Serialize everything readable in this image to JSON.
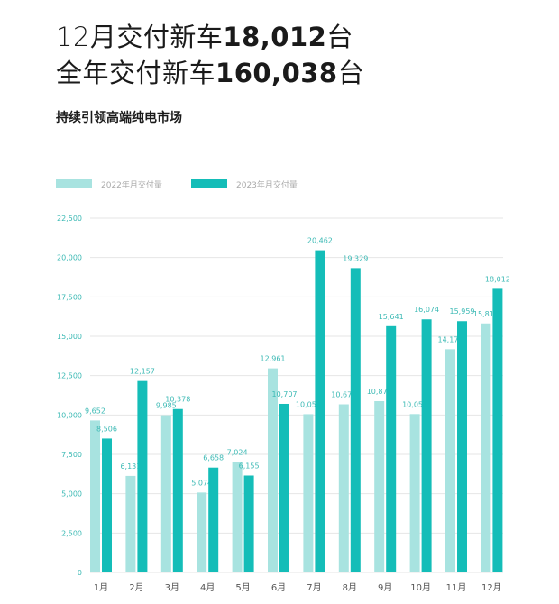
{
  "header": {
    "line1_prefix": "12月交付新车",
    "line1_value": "18,012",
    "line1_suffix": "台",
    "line2_prefix": "全年交付新车",
    "line2_value": "160,038",
    "line2_suffix": "台",
    "subtitle": "持续引领高端纯电市场"
  },
  "chart_data": {
    "type": "bar",
    "categories": [
      "1月",
      "2月",
      "3月",
      "4月",
      "5月",
      "6月",
      "7月",
      "8月",
      "9月",
      "10月",
      "11月",
      "12月"
    ],
    "series": [
      {
        "name": "2022年月交付量",
        "color": "#a8e3e0",
        "values": [
          9652,
          6131,
          9985,
          5074,
          7024,
          12961,
          10052,
          10677,
          10878,
          10059,
          14178,
          15815
        ],
        "labels": [
          "9,652",
          "6,131",
          "9,985",
          "5,074",
          "7,024",
          "12,961",
          "10,052",
          "10,677",
          "10,878",
          "10,059",
          "14,178",
          "15,815"
        ]
      },
      {
        "name": "2023年月交付量",
        "color": "#14bdb8",
        "values": [
          8506,
          12157,
          10378,
          6658,
          6155,
          10707,
          20462,
          19329,
          15641,
          16074,
          15959,
          18012
        ],
        "labels": [
          "8,506",
          "12,157",
          "10,378",
          "6,658",
          "6,155",
          "10,707",
          "20,462",
          "19,329",
          "15,641",
          "16,074",
          "15,959",
          "18,012"
        ]
      }
    ],
    "ylim": [
      0,
      22500
    ],
    "yticks": [
      0,
      2500,
      5000,
      7500,
      10000,
      12500,
      15000,
      17500,
      20000,
      22500
    ],
    "ytick_labels": [
      "0",
      "2,500",
      "5,000",
      "7,500",
      "10,000",
      "12,500",
      "15,000",
      "17,500",
      "20,000",
      "22,500"
    ],
    "grid": true,
    "legend": "top-left"
  }
}
